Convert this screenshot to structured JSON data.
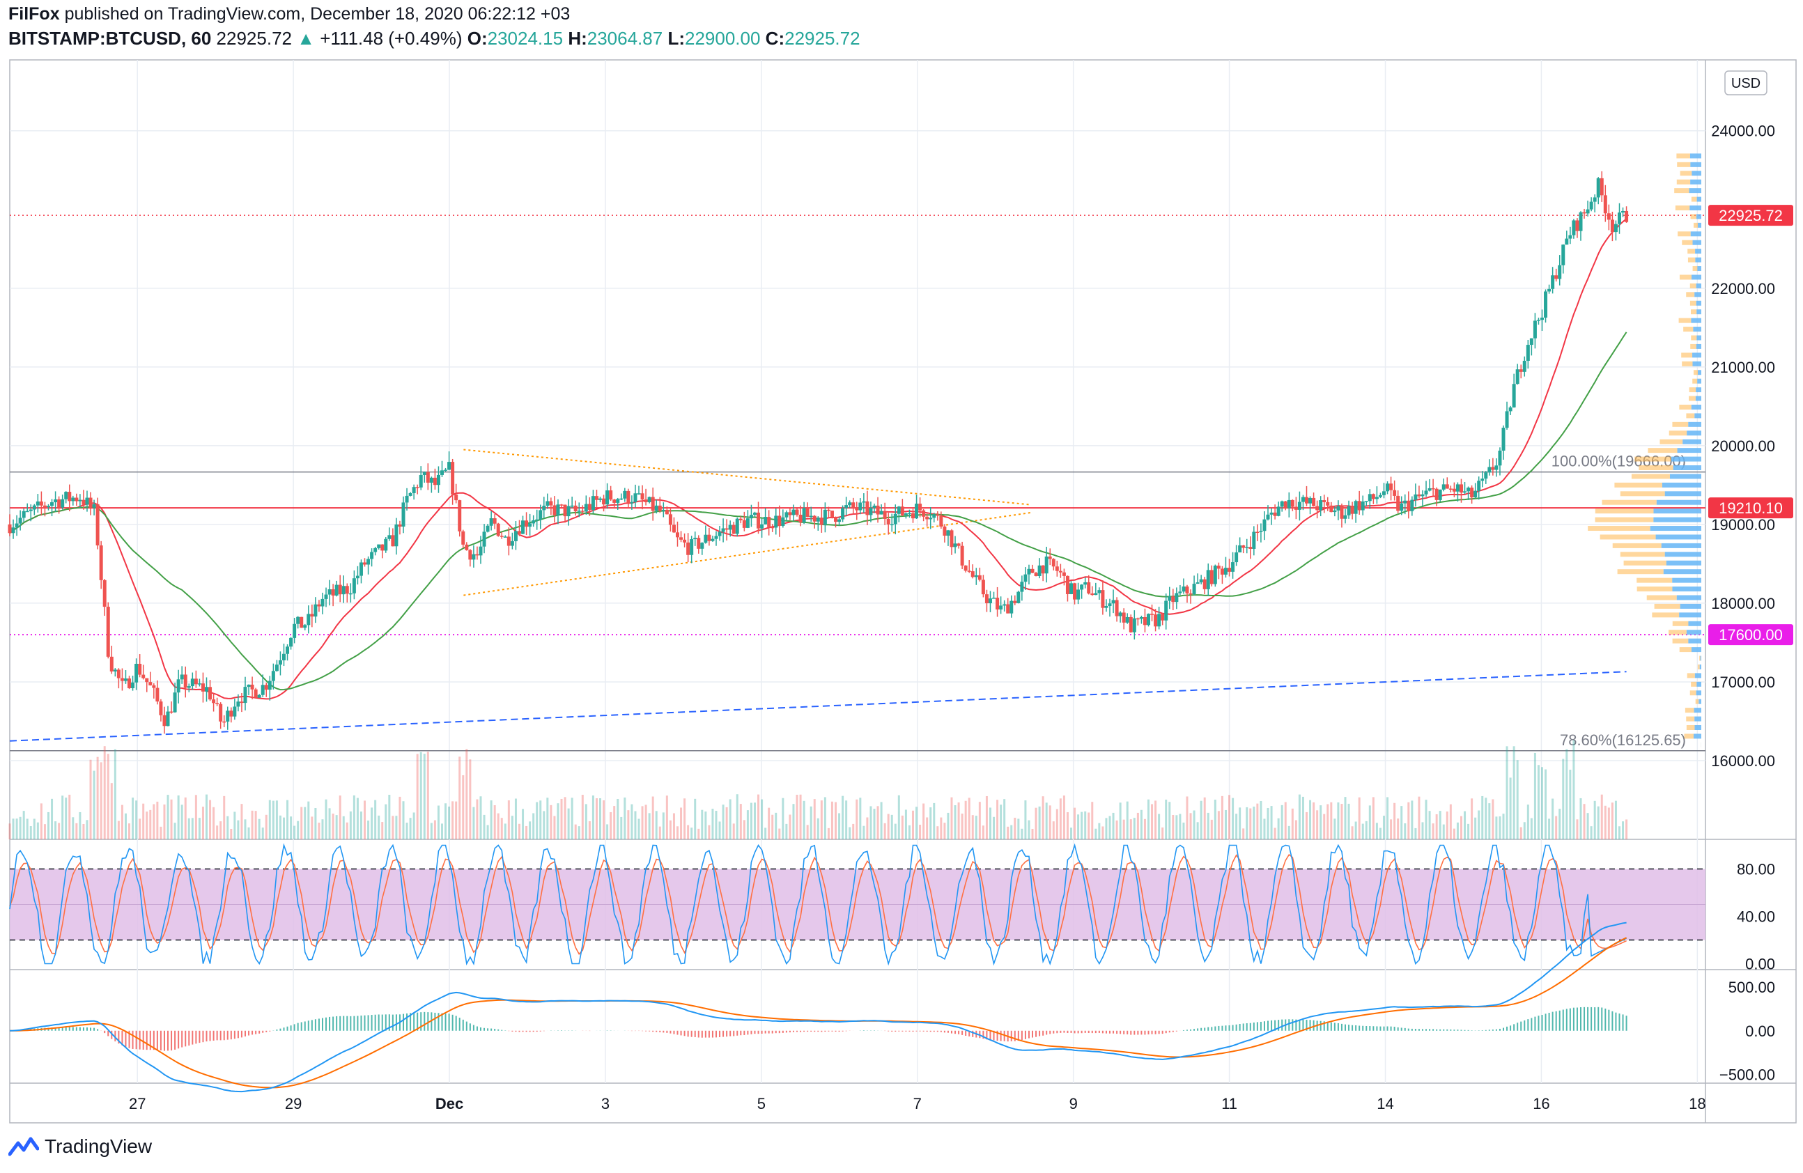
{
  "header": {
    "author": "FilFox",
    "published_text": "published on TradingView.com, December 18, 2020 06:22:12 +03",
    "symbol": "BITSTAMP:BTCUSD, 60",
    "last": "22925.72",
    "change_arrow": "▲",
    "change": "+111.48 (+0.49%)",
    "o_label": "O:",
    "o_value": "23024.15",
    "h_label": "H:",
    "h_value": "23064.87",
    "l_label": "L:",
    "l_value": "22900.00",
    "c_label": "C:",
    "c_value": "22925.72"
  },
  "currency_button": "USD",
  "footer": {
    "brand": "TradingView"
  },
  "colors": {
    "up": "#26a69a",
    "down": "#ef5350",
    "ma_red": "#f23645",
    "ma_green": "#43a047",
    "fib": "#787b86",
    "level_red": "#f23645",
    "level_magenta": "#e91ee9",
    "trend_blue": "#2962ff",
    "triangle": "#ff9800",
    "stoch_band": "#e1bee7",
    "stoch_k": "#2196f3",
    "stoch_d": "#ff7043",
    "macd_line": "#2196f3",
    "macd_signal": "#ff6d00",
    "vp_up": "#64b5f6",
    "vp_down": "#ffb74d"
  },
  "chart_data": {
    "type": "candlestick",
    "symbol": "BITSTAMP:BTCUSD",
    "interval": "60",
    "x_tick_labels": [
      "27",
      "29",
      "Dec",
      "3",
      "5",
      "7",
      "9",
      "11",
      "14",
      "16",
      "18"
    ],
    "price_axis": {
      "ticks": [
        16000,
        17000,
        18000,
        19000,
        20000,
        21000,
        22000,
        24000
      ],
      "tick_labels": [
        "16000.00",
        "17000.00",
        "18000.00",
        "19000.00",
        "20000.00",
        "21000.00",
        "22000.00",
        "24000.00"
      ],
      "range": [
        15000,
        24900
      ]
    },
    "price_labels": [
      {
        "value": 22925.72,
        "text": "22925.72",
        "color": "#f23645"
      },
      {
        "value": 19210.1,
        "text": "19210.10",
        "color": "#f23645"
      },
      {
        "value": 17600.0,
        "text": "17600.00",
        "color": "#e91ee9"
      }
    ],
    "fib_levels": [
      {
        "value": 19666.0,
        "text": "100.00%(19666.00)"
      },
      {
        "value": 16125.65,
        "text": "78.60%(16125.65)"
      }
    ],
    "price_path": [
      [
        0,
        19000
      ],
      [
        3,
        19300
      ],
      [
        5,
        19350
      ],
      [
        6,
        19150
      ],
      [
        7,
        17300
      ],
      [
        8,
        16900
      ],
      [
        9,
        17200
      ],
      [
        10,
        16900
      ],
      [
        11,
        16500
      ],
      [
        12,
        17000
      ],
      [
        14,
        16900
      ],
      [
        15,
        16450
      ],
      [
        16,
        16800
      ],
      [
        18,
        16950
      ],
      [
        19,
        17300
      ],
      [
        20,
        17700
      ],
      [
        21,
        17750
      ],
      [
        22,
        18050
      ],
      [
        24,
        18200
      ],
      [
        25,
        18500
      ],
      [
        27,
        18800
      ],
      [
        28,
        19300
      ],
      [
        29,
        19600
      ],
      [
        30,
        19500
      ],
      [
        31,
        19700
      ],
      [
        32,
        18700
      ],
      [
        33,
        18600
      ],
      [
        34,
        19050
      ],
      [
        35,
        18800
      ],
      [
        36,
        19000
      ],
      [
        37,
        19100
      ],
      [
        38,
        19200
      ],
      [
        40,
        19150
      ],
      [
        42,
        19350
      ],
      [
        44,
        19350
      ],
      [
        46,
        19150
      ],
      [
        47,
        18800
      ],
      [
        48,
        18700
      ],
      [
        49,
        18800
      ],
      [
        50,
        18900
      ],
      [
        52,
        19050
      ],
      [
        54,
        19050
      ],
      [
        56,
        19100
      ],
      [
        58,
        19100
      ],
      [
        59,
        19200
      ],
      [
        60,
        19200
      ],
      [
        62,
        19100
      ],
      [
        64,
        19200
      ],
      [
        65,
        19150
      ],
      [
        66,
        18950
      ],
      [
        67,
        18600
      ],
      [
        68,
        18300
      ],
      [
        69,
        18050
      ],
      [
        70,
        17900
      ],
      [
        71,
        18100
      ],
      [
        72,
        18400
      ],
      [
        73,
        18500
      ],
      [
        74,
        18400
      ],
      [
        75,
        18100
      ],
      [
        76,
        18200
      ],
      [
        77,
        18050
      ],
      [
        78,
        17950
      ],
      [
        79,
        17700
      ],
      [
        80,
        17750
      ],
      [
        81,
        17800
      ],
      [
        82,
        18050
      ],
      [
        84,
        18250
      ],
      [
        86,
        18500
      ],
      [
        87,
        18700
      ],
      [
        88,
        18900
      ],
      [
        89,
        19150
      ],
      [
        90,
        19300
      ],
      [
        92,
        19250
      ],
      [
        94,
        19150
      ],
      [
        95,
        19250
      ],
      [
        96,
        19300
      ],
      [
        97,
        19450
      ],
      [
        98,
        19200
      ],
      [
        100,
        19400
      ],
      [
        102,
        19450
      ],
      [
        103,
        19350
      ],
      [
        104,
        19550
      ],
      [
        105,
        19850
      ],
      [
        106,
        20700
      ],
      [
        107,
        21300
      ],
      [
        108,
        21700
      ],
      [
        109,
        22200
      ],
      [
        110,
        22700
      ],
      [
        111,
        22950
      ],
      [
        112,
        23300
      ],
      [
        113,
        22800
      ],
      [
        114,
        22925.72
      ]
    ],
    "volume": {
      "last_shown": "spikes at x=6, 7, 29, 32, 106, 108, 110"
    },
    "indicators": [
      {
        "name": "moving_average",
        "color": "red",
        "description": "faster MA"
      },
      {
        "name": "moving_average",
        "color": "green",
        "description": "slower MA"
      },
      {
        "name": "stochastic_rsi",
        "y_ticks": [
          0,
          40,
          80
        ],
        "y_tick_labels": [
          "0.00",
          "40.00",
          "80.00"
        ],
        "band": [
          20,
          80
        ],
        "range": [
          -5,
          105
        ]
      },
      {
        "name": "macd",
        "y_ticks": [
          -500,
          0,
          500
        ],
        "y_tick_labels": [
          "−500.00",
          "0.00",
          "500.00"
        ],
        "range": [
          -600,
          700
        ]
      }
    ],
    "drawings": [
      {
        "type": "horizontal_line",
        "value": 19210.1,
        "color": "red"
      },
      {
        "type": "horizontal_line",
        "value": 17600.0,
        "color": "magenta",
        "style": "dotted"
      },
      {
        "type": "horizontal_line",
        "value": 22925.72,
        "color": "red",
        "style": "dotted"
      },
      {
        "type": "trend_line",
        "color": "blue",
        "style": "dashed",
        "from": [
          0,
          16250
        ],
        "to": [
          114,
          17130
        ]
      },
      {
        "type": "triangle",
        "color": "orange",
        "style": "dotted",
        "upper": [
          [
            32,
            19950
          ],
          [
            72,
            19250
          ]
        ],
        "lower": [
          [
            32,
            18100
          ],
          [
            72,
            19150
          ]
        ]
      }
    ]
  }
}
